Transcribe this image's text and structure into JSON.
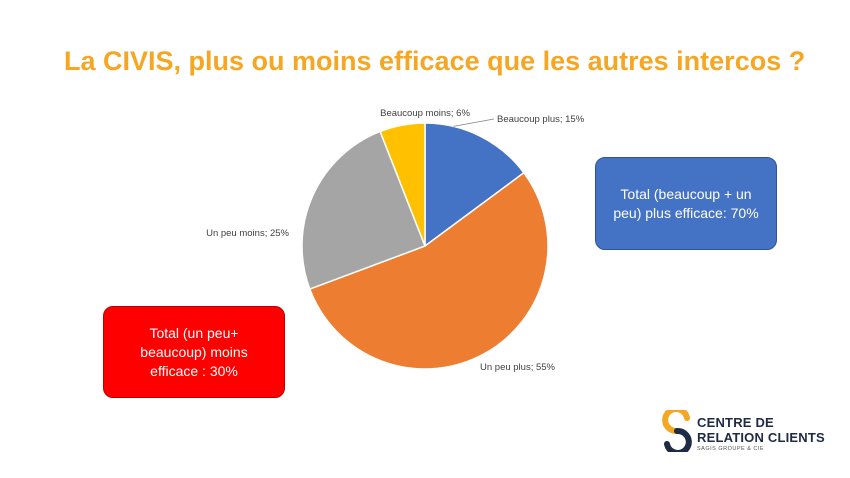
{
  "title": "La CIVIS, plus ou moins efficace que les autres intercos ?",
  "chart_data": {
    "type": "pie",
    "title": "La CIVIS, plus ou moins efficace que les autres intercos ?",
    "slices": [
      {
        "label": "Beaucoup plus; 15%",
        "value": 15,
        "color": "#4472C4"
      },
      {
        "label": "Un peu plus; 55%",
        "value": 55,
        "color": "#ED7D31"
      },
      {
        "label": "Un peu moins; 25%",
        "value": 25,
        "color": "#A5A5A5"
      },
      {
        "label": "Beaucoup moins; 6%",
        "value": 6,
        "color": "#FFC000"
      }
    ]
  },
  "callouts": {
    "blue": "Total (beaucoup + un peu) plus efficace: 70%",
    "red": "Total (un peu+ beaucoup) moins efficace : 30%"
  },
  "logo": {
    "line1": "CENTRE DE",
    "line2": "RELATION CLIENTS",
    "sub": "SAGIS GROUPE & CIE",
    "colors": {
      "dark": "#1f2a44",
      "accent": "#F5A623"
    }
  }
}
